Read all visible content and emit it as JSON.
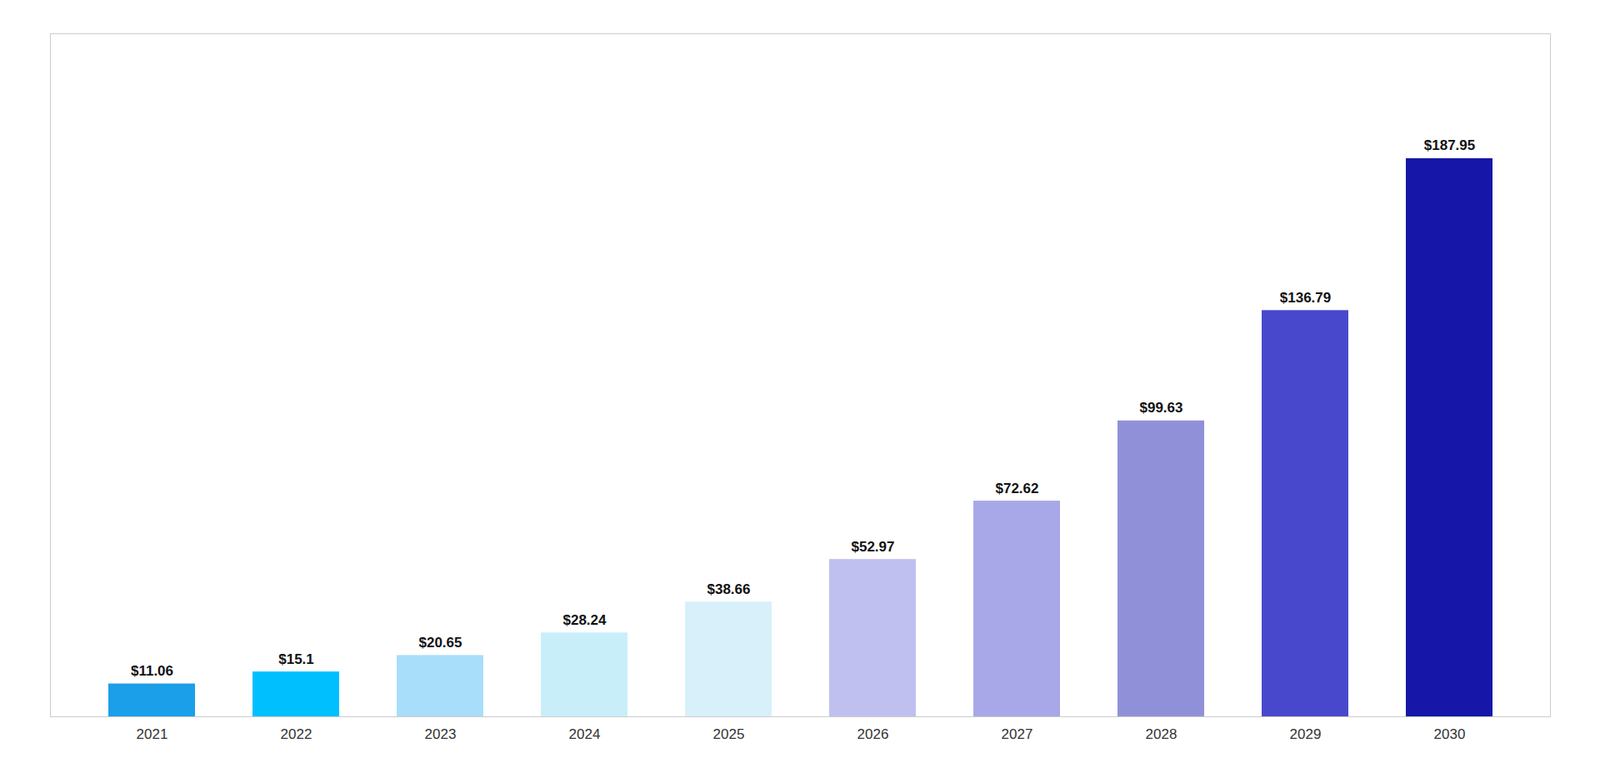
{
  "chart_data": {
    "type": "bar",
    "categories": [
      "2021",
      "2022",
      "2023",
      "2024",
      "2025",
      "2026",
      "2027",
      "2028",
      "2029",
      "2030"
    ],
    "values": [
      11.06,
      15.1,
      20.65,
      28.24,
      38.66,
      52.97,
      72.62,
      99.63,
      136.79,
      187.95
    ],
    "value_labels": [
      "$11.06",
      "$15.1",
      "$20.65",
      "$28.24",
      "$38.66",
      "$52.97",
      "$72.62",
      "$99.63",
      "$136.79",
      "$187.95"
    ],
    "colors": [
      "#1A9FE8",
      "#00BFFF",
      "#A8DEFA",
      "#C8EEFA",
      "#D8F0FA",
      "#C0C0F0",
      "#A8A8E8",
      "#9090D8",
      "#4848CC",
      "#1616A8"
    ],
    "ylim": [
      0,
      230
    ],
    "data_labels": true,
    "tick_labels": "x",
    "grid": false
  }
}
